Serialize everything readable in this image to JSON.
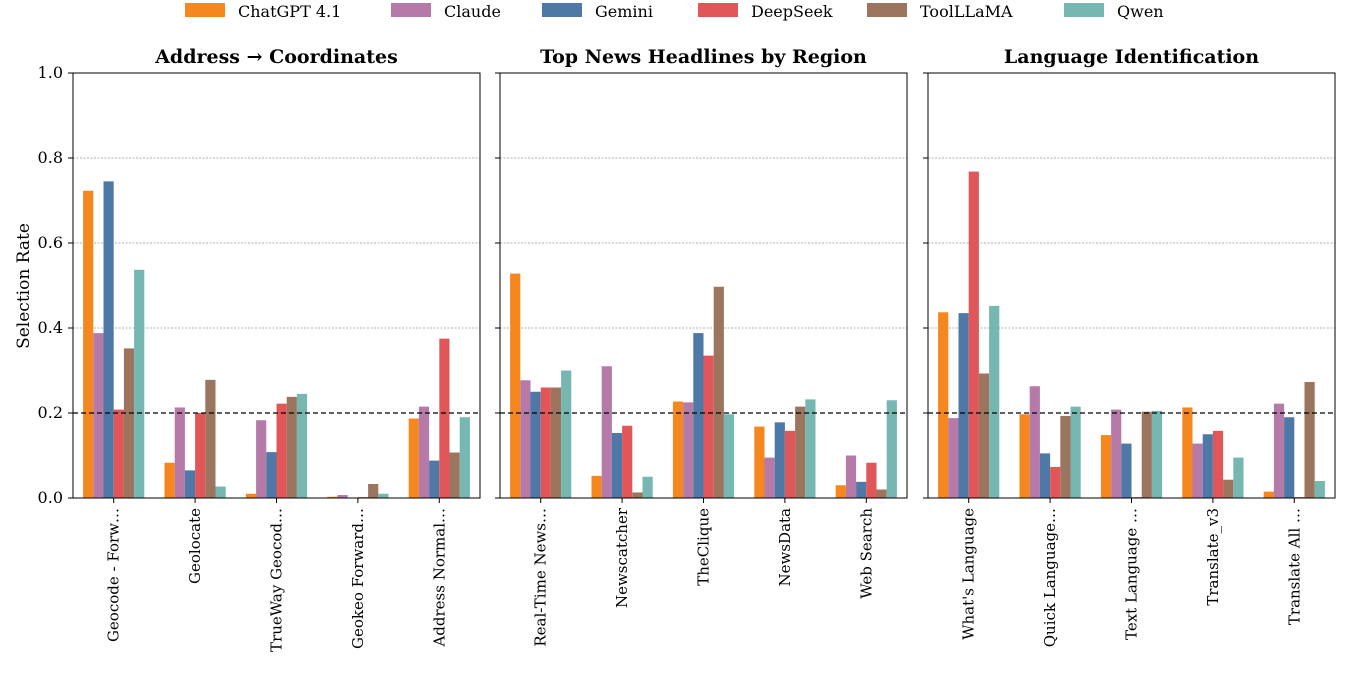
{
  "chart_data": {
    "type": "bar",
    "ylabel": "Selection Rate",
    "ylim": [
      0,
      1.0
    ],
    "yticks": [
      "0.0",
      "0.2",
      "0.4",
      "0.6",
      "0.8",
      "1.0"
    ],
    "reference_line": 0.2,
    "grid": "horizontal dotted at 0.4, 0.6, 0.8",
    "legend": {
      "placement": "top-center",
      "entries": [
        {
          "name": "ChatGPT 4.1",
          "color": "#f5871f"
        },
        {
          "name": "Claude",
          "color": "#b57aa8"
        },
        {
          "name": "Gemini",
          "color": "#4e79a7"
        },
        {
          "name": "DeepSeek",
          "color": "#e15759"
        },
        {
          "name": "ToolLLaMA",
          "color": "#9c755f"
        },
        {
          "name": "Qwen",
          "color": "#76b7b2"
        }
      ]
    },
    "panels": [
      {
        "title": "Address → Coordinates",
        "categories": [
          "Geocode - Forw…",
          "Geolocate",
          "TrueWay Geocod…",
          "Geokeo Forward…",
          "Address Normal…"
        ],
        "series": [
          {
            "name": "ChatGPT 4.1",
            "values": [
              0.723,
              0.083,
              0.01,
              0.003,
              0.187
            ]
          },
          {
            "name": "Claude",
            "values": [
              0.388,
              0.213,
              0.183,
              0.007,
              0.215
            ]
          },
          {
            "name": "Gemini",
            "values": [
              0.745,
              0.065,
              0.108,
              0.001,
              0.088
            ]
          },
          {
            "name": "DeepSeek",
            "values": [
              0.208,
              0.2,
              0.222,
              0.002,
              0.375
            ]
          },
          {
            "name": "ToolLLaMA",
            "values": [
              0.352,
              0.278,
              0.238,
              0.033,
              0.107
            ]
          },
          {
            "name": "Qwen",
            "values": [
              0.537,
              0.027,
              0.245,
              0.01,
              0.19
            ]
          }
        ]
      },
      {
        "title": "Top News Headlines by Region",
        "categories": [
          "Real-Time News…",
          "Newscatcher",
          "TheClique",
          "NewsData",
          "Web Search"
        ],
        "series": [
          {
            "name": "ChatGPT 4.1",
            "values": [
              0.528,
              0.052,
              0.227,
              0.168,
              0.03
            ]
          },
          {
            "name": "Claude",
            "values": [
              0.277,
              0.31,
              0.225,
              0.095,
              0.1
            ]
          },
          {
            "name": "Gemini",
            "values": [
              0.25,
              0.153,
              0.388,
              0.178,
              0.038
            ]
          },
          {
            "name": "DeepSeek",
            "values": [
              0.26,
              0.17,
              0.335,
              0.158,
              0.083
            ]
          },
          {
            "name": "ToolLLaMA",
            "values": [
              0.26,
              0.013,
              0.497,
              0.215,
              0.02
            ]
          },
          {
            "name": "Qwen",
            "values": [
              0.3,
              0.05,
              0.197,
              0.232,
              0.23
            ]
          }
        ]
      },
      {
        "title": "Language Identification",
        "categories": [
          "What's Language",
          "Quick Language…",
          "Text Language …",
          "Translate_v3",
          "Translate All …"
        ],
        "series": [
          {
            "name": "ChatGPT 4.1",
            "values": [
              0.437,
              0.197,
              0.148,
              0.213,
              0.015
            ]
          },
          {
            "name": "Claude",
            "values": [
              0.188,
              0.263,
              0.208,
              0.128,
              0.222
            ]
          },
          {
            "name": "Gemini",
            "values": [
              0.435,
              0.105,
              0.128,
              0.15,
              0.19
            ]
          },
          {
            "name": "DeepSeek",
            "values": [
              0.768,
              0.073,
              0.002,
              0.158,
              0.002
            ]
          },
          {
            "name": "ToolLLaMA",
            "values": [
              0.293,
              0.193,
              0.203,
              0.043,
              0.273
            ]
          },
          {
            "name": "Qwen",
            "values": [
              0.452,
              0.215,
              0.205,
              0.095,
              0.04
            ]
          }
        ]
      }
    ]
  }
}
